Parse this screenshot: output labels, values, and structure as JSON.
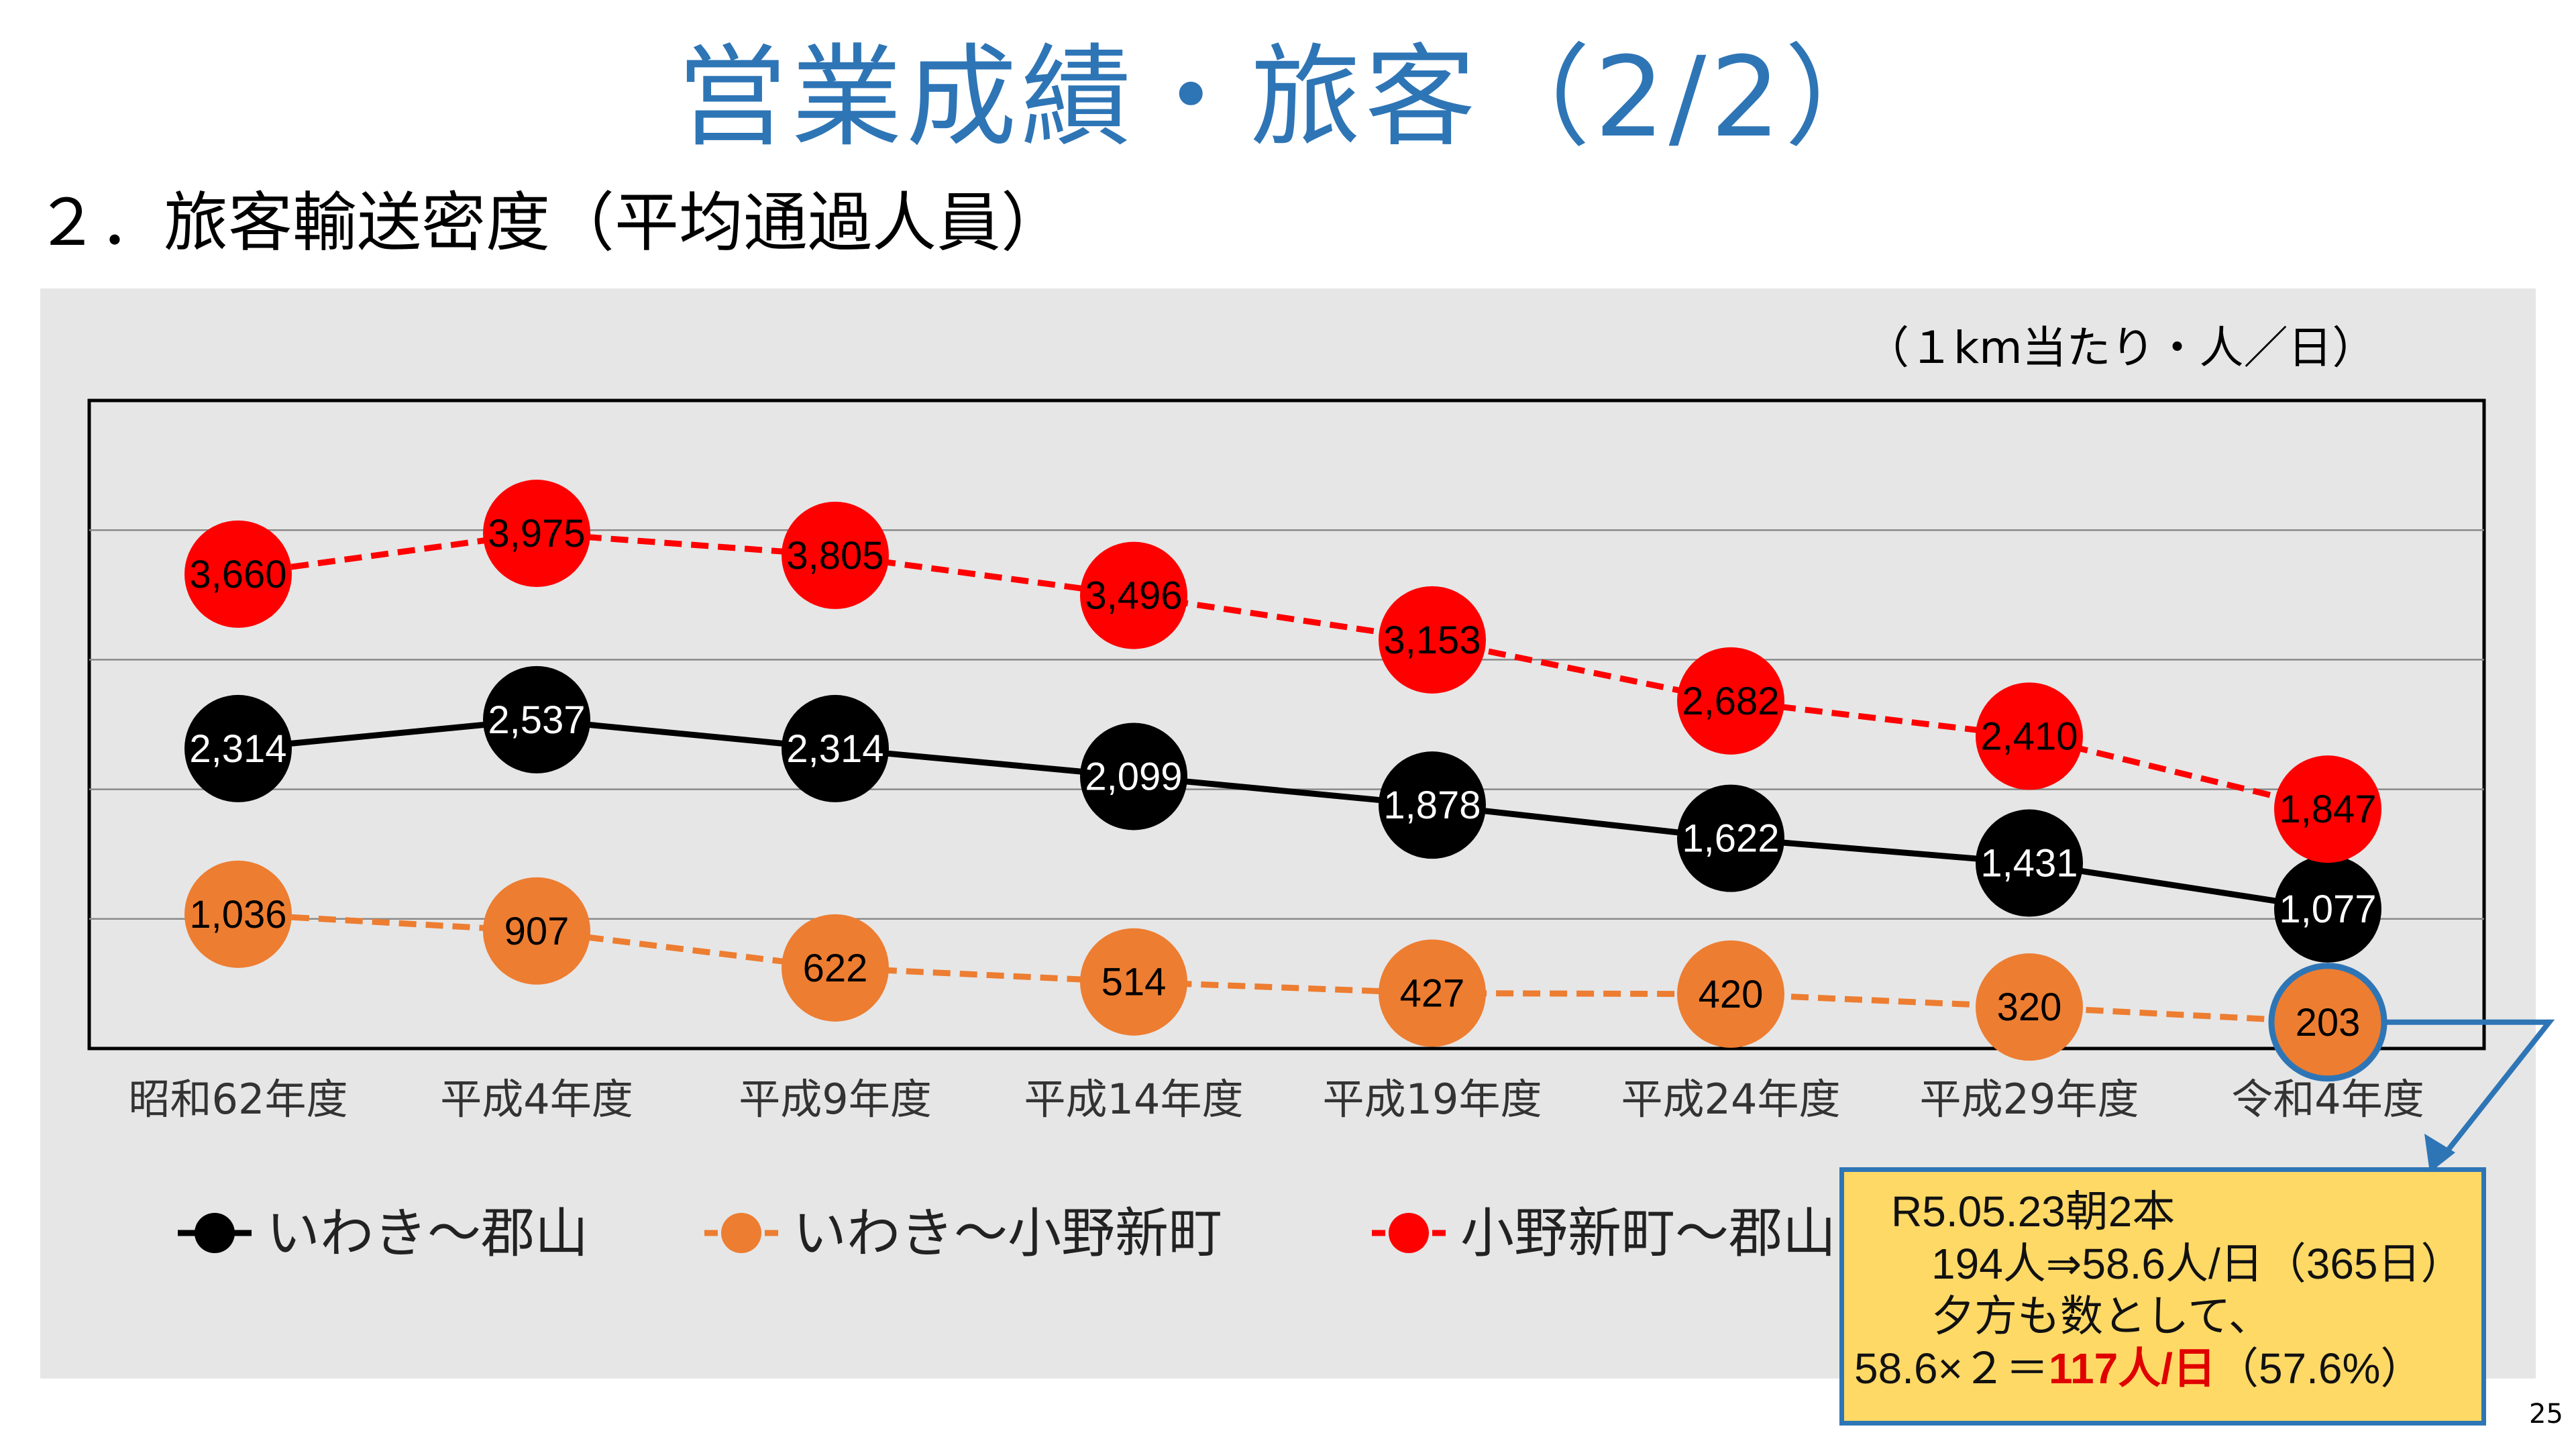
{
  "slide": {
    "title": "営業成績・旅客（2/2）",
    "section_heading": "２．旅客輸送密度（平均通過人員）",
    "page_number": "25"
  },
  "chart_data": {
    "type": "line",
    "unit_label": "（１km当たり・人／日）",
    "categories": [
      "昭和62年度",
      "平成4年度",
      "平成9年度",
      "平成14年度",
      "平成19年度",
      "平成24年度",
      "平成29年度",
      "令和4年度"
    ],
    "ylim": [
      0,
      5000
    ],
    "grid": true,
    "legend_position": "bottom",
    "series": [
      {
        "name": "いわき〜郡山",
        "color": "#000000",
        "label_color": "#ffffff",
        "line_style": "solid",
        "values": [
          2314,
          2537,
          2314,
          2099,
          1878,
          1622,
          1431,
          1077
        ],
        "labels": [
          "2,314",
          "2,537",
          "2,314",
          "2,099",
          "1,878",
          "1,622",
          "1,431",
          "1,077"
        ]
      },
      {
        "name": "いわき〜小野新町",
        "color": "#ed7d31",
        "label_color": "#000000",
        "line_style": "dashed",
        "values": [
          1036,
          907,
          622,
          514,
          427,
          420,
          320,
          203
        ],
        "labels": [
          "1,036",
          "907",
          "622",
          "514",
          "427",
          "420",
          "320",
          "203"
        ]
      },
      {
        "name": "小野新町〜郡山",
        "color": "#ff0000",
        "label_color": "#000000",
        "line_style": "dashed",
        "values": [
          3660,
          3975,
          3805,
          3496,
          3153,
          2682,
          2410,
          1847
        ],
        "labels": [
          "3,660",
          "3,975",
          "3,805",
          "3,496",
          "3,153",
          "2,682",
          "2,410",
          "1,847"
        ]
      }
    ],
    "highlight": {
      "series": 1,
      "index": 7,
      "color": "#2e75b6"
    }
  },
  "callout": {
    "line1": "R5.05.23朝2本",
    "line2": "194人⇒58.6人/日（365日）",
    "line3": "夕方も数として、",
    "line4_prefix": "58.6×２＝",
    "line4_highlight": "117人/日",
    "line4_suffix": "（57.6%）",
    "background": "#ffd966",
    "border": "#2e75b6"
  }
}
